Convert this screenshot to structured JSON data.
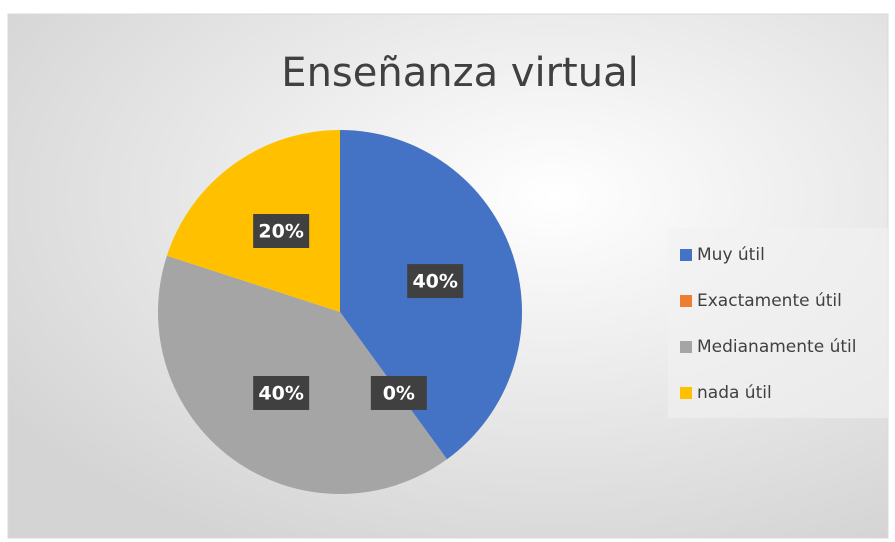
{
  "chart_data": {
    "type": "pie",
    "title": "Enseñanza virtual",
    "categories": [
      "Muy útil",
      "Exactamente útil",
      "Medianamente útil",
      "nada útil"
    ],
    "values": [
      40,
      0,
      40,
      20
    ],
    "value_labels": [
      "40%",
      "0%",
      "40%",
      "20%"
    ],
    "colors": [
      "#4472c4",
      "#ed7d31",
      "#a5a5a5",
      "#ffc000"
    ],
    "legend": "right"
  }
}
